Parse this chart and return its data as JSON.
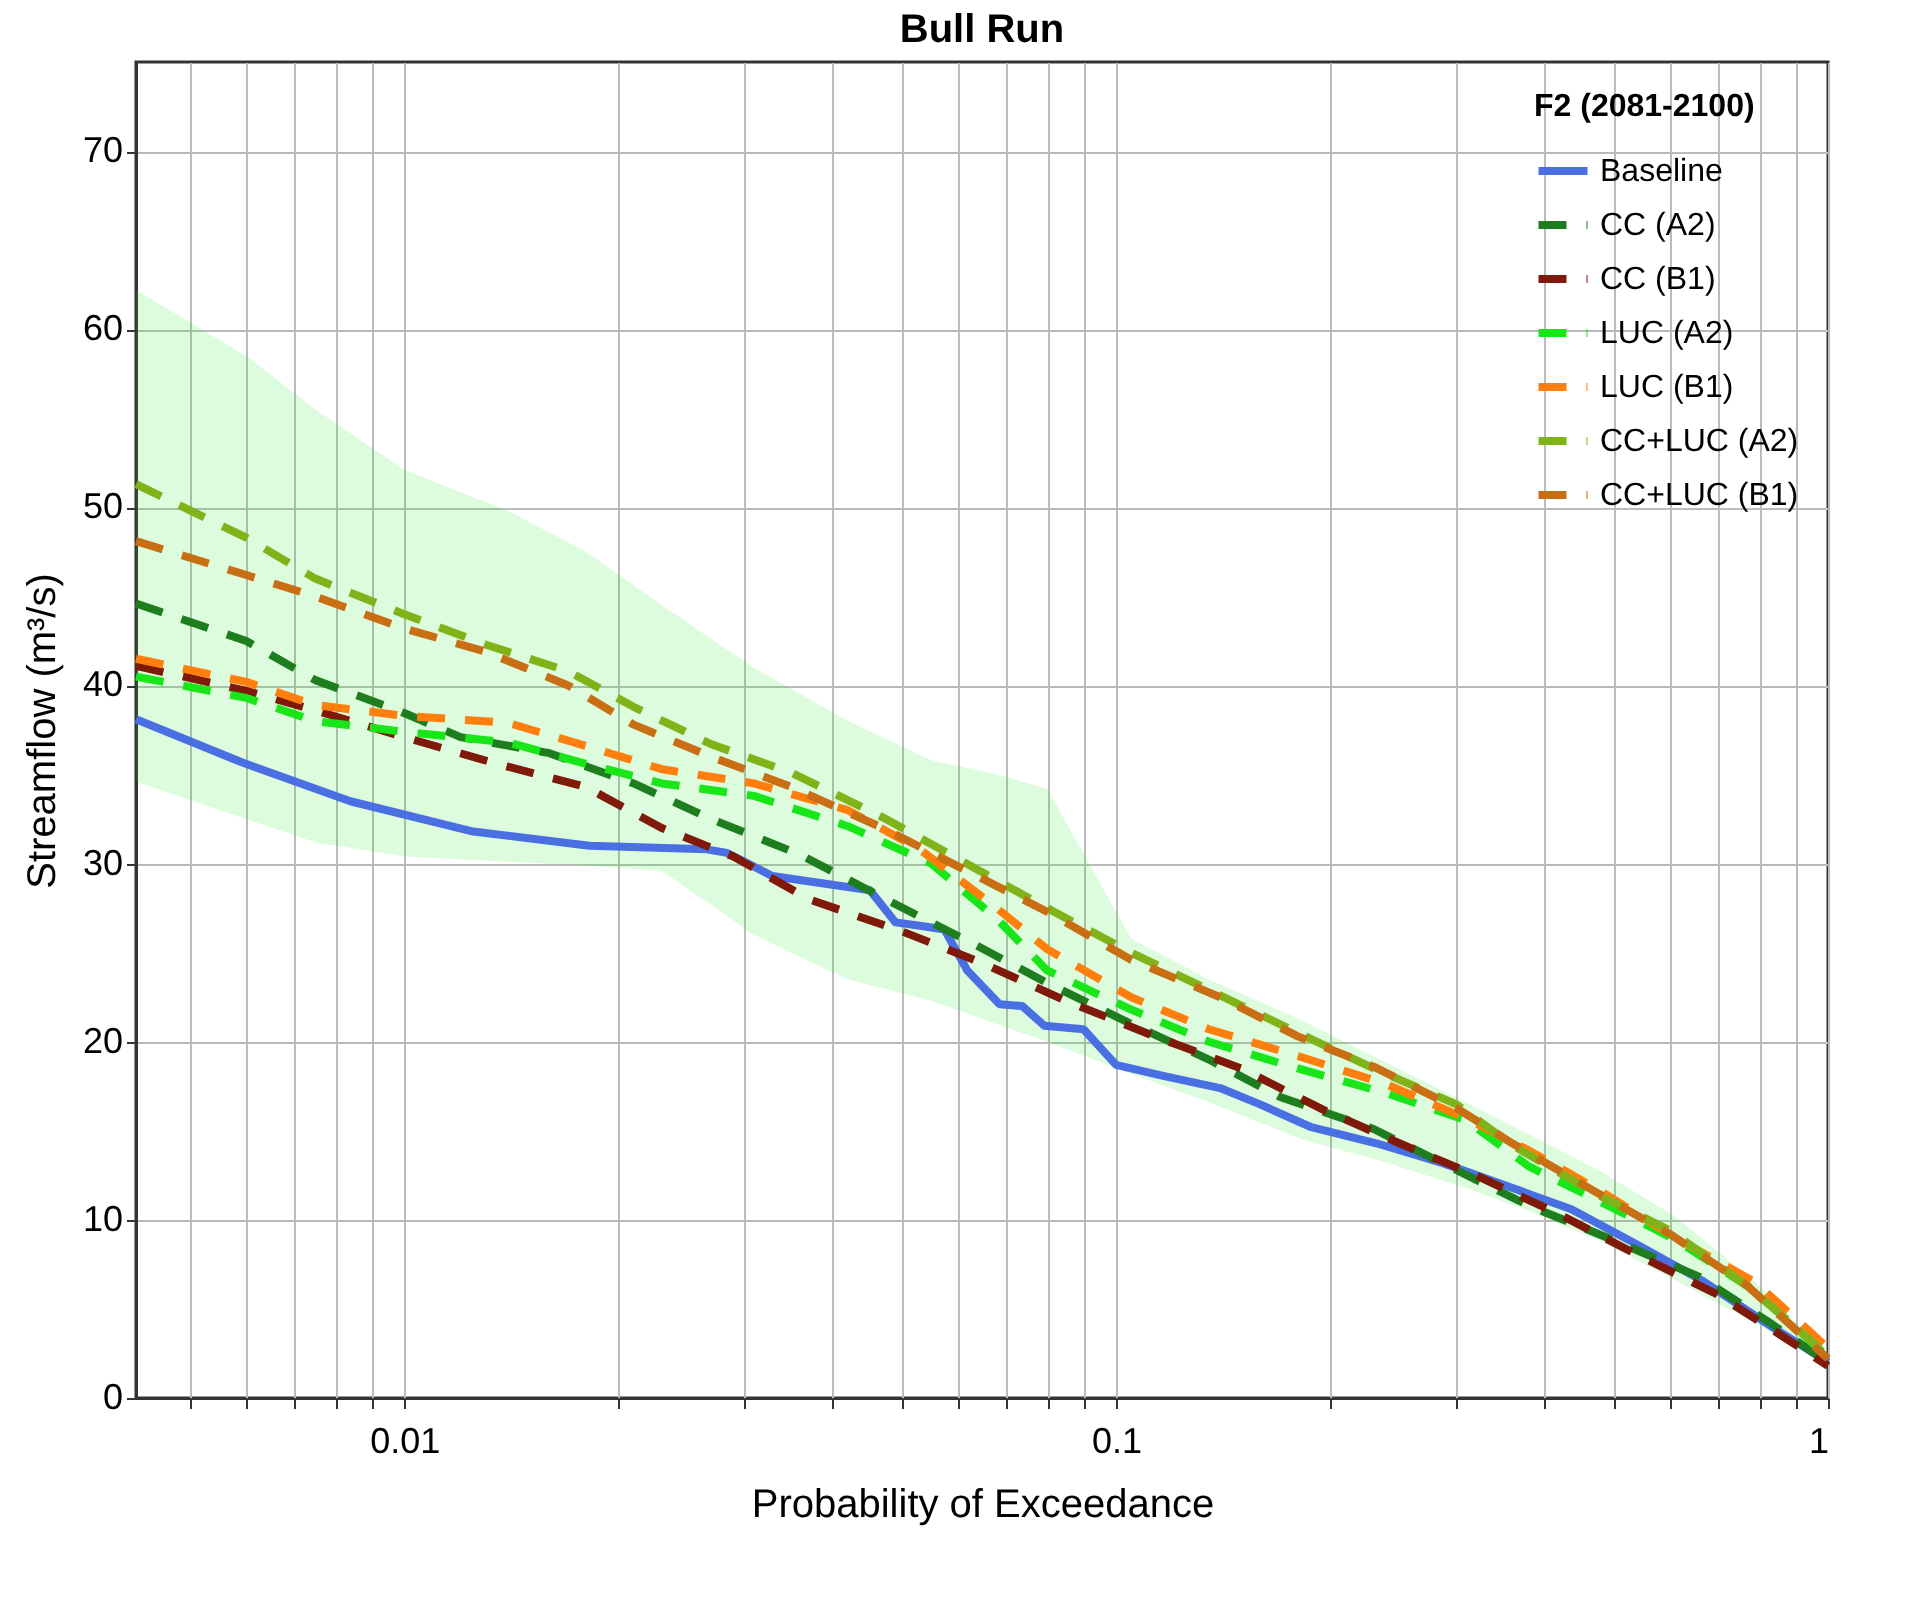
{
  "chart_data": {
    "type": "line",
    "title": "Bull Run",
    "xlabel": "Probability of Exceedance",
    "ylabel": "Streamflow (m³/s)",
    "legend_title": "F2 (2081-2100)",
    "legend": "top right",
    "grid": true,
    "log": "x",
    "xlim": [
      0.0042,
      1
    ],
    "ylim": [
      0,
      75
    ],
    "xticks": [
      {
        "value": 0.005,
        "label": null
      },
      {
        "value": 0.006,
        "label": null
      },
      {
        "value": 0.007,
        "label": null
      },
      {
        "value": 0.008,
        "label": null
      },
      {
        "value": 0.009,
        "label": null
      },
      0.01,
      {
        "value": 0.02,
        "label": null
      },
      {
        "value": 0.03,
        "label": null
      },
      {
        "value": 0.04,
        "label": null
      },
      {
        "value": 0.05,
        "label": null
      },
      {
        "value": 0.06,
        "label": null
      },
      {
        "value": 0.07,
        "label": null
      },
      {
        "value": 0.08,
        "label": null
      },
      {
        "value": 0.09,
        "label": null
      },
      0.1,
      {
        "value": 0.2,
        "label": null
      },
      {
        "value": 0.3,
        "label": null
      },
      {
        "value": 0.4,
        "label": null
      },
      {
        "value": 0.5,
        "label": null
      },
      {
        "value": 0.6,
        "label": null
      },
      {
        "value": 0.7,
        "label": null
      },
      {
        "value": 0.8,
        "label": null
      },
      {
        "value": 0.9,
        "label": null
      },
      1
    ],
    "yticks": [
      0,
      10,
      20,
      30,
      40,
      50,
      60,
      70
    ],
    "series": [
      {
        "name": "Baseline",
        "color": "#4a6fe3",
        "line_style": "solid",
        "x": [
          0.0042,
          0.0059,
          0.0084,
          0.0125,
          0.0182,
          0.0266,
          0.0284,
          0.0329,
          0.0451,
          0.049,
          0.0533,
          0.0574,
          0.0618,
          0.0686,
          0.0738,
          0.0793,
          0.09,
          0.1,
          0.116,
          0.14,
          0.159,
          0.188,
          0.232,
          0.287,
          0.354,
          0.436,
          0.54,
          0.665,
          0.819,
          1
        ],
        "values": [
          38.1,
          35.7,
          33.5,
          31.8,
          31.0,
          30.8,
          30.6,
          29.3,
          28.5,
          26.7,
          26.5,
          26.3,
          24.0,
          22.1,
          22.0,
          20.9,
          20.7,
          18.7,
          18.1,
          17.4,
          16.5,
          15.2,
          14.3,
          13.2,
          11.9,
          10.6,
          8.6,
          6.6,
          4.2,
          2.0
        ]
      },
      {
        "name": "CC (A2)",
        "color": "#1e7d1e",
        "line_style": "dashed",
        "x": [
          0.0042,
          0.006,
          0.0075,
          0.0098,
          0.012,
          0.016,
          0.021,
          0.027,
          0.036,
          0.048,
          0.063,
          0.08,
          0.105,
          0.135,
          0.17,
          0.23,
          0.29,
          0.38,
          0.49,
          0.66,
          0.83,
          1
        ],
        "values": [
          44.6,
          42.5,
          40.3,
          38.6,
          37.1,
          36.2,
          34.5,
          32.5,
          30.5,
          27.9,
          25.5,
          23.3,
          21.0,
          19.0,
          16.9,
          15.1,
          13.1,
          10.8,
          9.0,
          6.8,
          4.2,
          2.0
        ]
      },
      {
        "name": "CC (B1)",
        "color": "#7f1a0a",
        "line_style": "dashed",
        "x": [
          0.0042,
          0.006,
          0.0075,
          0.01,
          0.0135,
          0.018,
          0.023,
          0.029,
          0.037,
          0.05,
          0.065,
          0.085,
          0.115,
          0.15,
          0.195,
          0.25,
          0.32,
          0.42,
          0.53,
          0.7,
          0.9,
          1
        ],
        "values": [
          41.1,
          39.7,
          38.6,
          37.1,
          35.6,
          34.3,
          32.0,
          30.4,
          28.0,
          26.2,
          24.4,
          22.3,
          20.2,
          18.5,
          16.2,
          14.3,
          12.5,
          10.3,
          8.2,
          5.8,
          3.0,
          1.8
        ]
      },
      {
        "name": "LUC (A2)",
        "color": "#19e619",
        "line_style": "dashed",
        "x": [
          0.0042,
          0.006,
          0.0075,
          0.01,
          0.014,
          0.018,
          0.023,
          0.031,
          0.042,
          0.055,
          0.068,
          0.08,
          0.105,
          0.135,
          0.18,
          0.24,
          0.31,
          0.38,
          0.48,
          0.61,
          0.79,
          1
        ],
        "values": [
          40.5,
          39.3,
          38.0,
          37.4,
          36.8,
          35.6,
          34.5,
          33.8,
          32.1,
          30.0,
          26.9,
          24.0,
          21.8,
          20.0,
          18.5,
          17.1,
          15.6,
          13.0,
          11.0,
          8.9,
          6.0,
          2.3
        ],
        "lower": [
          34.6,
          32.5,
          31.2,
          30.4,
          30.1,
          29.9,
          29.6,
          26.0,
          23.5,
          22.3,
          21.0,
          20.0,
          18.2,
          16.6,
          14.6,
          13.2,
          11.8,
          10.5,
          8.8,
          6.6,
          4.2,
          1.8
        ],
        "upper": [
          62.2,
          58.5,
          55.5,
          52.1,
          49.8,
          47.5,
          44.5,
          41.0,
          38.0,
          35.8,
          35.0,
          34.2,
          25.8,
          23.5,
          21.3,
          18.8,
          16.6,
          14.8,
          12.7,
          10.2,
          6.5,
          2.5
        ]
      },
      {
        "name": "LUC (B1)",
        "color": "#ff7f0e",
        "line_style": "dashed",
        "x": [
          0.0042,
          0.006,
          0.0075,
          0.01,
          0.014,
          0.018,
          0.023,
          0.031,
          0.042,
          0.053,
          0.068,
          0.08,
          0.105,
          0.135,
          0.18,
          0.24,
          0.31,
          0.38,
          0.48,
          0.61,
          0.79,
          1
        ],
        "values": [
          41.5,
          40.2,
          38.9,
          38.3,
          37.9,
          36.6,
          35.3,
          34.5,
          33.0,
          30.8,
          27.5,
          25.2,
          22.5,
          20.7,
          19.2,
          17.6,
          15.7,
          13.9,
          11.6,
          9.0,
          6.5,
          2.8
        ]
      },
      {
        "name": "CC+LUC (A2)",
        "color": "#80b31a",
        "line_style": "dashed",
        "x": [
          0.0042,
          0.006,
          0.0075,
          0.01,
          0.013,
          0.017,
          0.021,
          0.027,
          0.035,
          0.047,
          0.08,
          0.105,
          0.14,
          0.18,
          0.23,
          0.3,
          0.36,
          0.47,
          0.6,
          0.77,
          1
        ],
        "values": [
          51.3,
          48.3,
          46.0,
          44.0,
          42.3,
          40.8,
          38.8,
          36.7,
          35.1,
          32.6,
          27.5,
          25.0,
          22.6,
          20.5,
          18.5,
          16.5,
          14.2,
          11.5,
          9.4,
          6.3,
          2.4
        ]
      },
      {
        "name": "CC+LUC (B1)",
        "color": "#c86e14",
        "line_style": "dashed",
        "x": [
          0.0042,
          0.006,
          0.0075,
          0.01,
          0.013,
          0.017,
          0.021,
          0.027,
          0.035,
          0.047,
          0.08,
          0.105,
          0.14,
          0.18,
          0.23,
          0.3,
          0.36,
          0.47,
          0.6,
          0.77,
          1
        ],
        "values": [
          48.1,
          46.2,
          45.0,
          43.2,
          41.9,
          40.0,
          37.8,
          36.0,
          34.3,
          32.0,
          27.3,
          24.6,
          22.5,
          20.3,
          18.6,
          16.3,
          14.3,
          11.6,
          9.2,
          6.3,
          2.2
        ]
      }
    ]
  }
}
